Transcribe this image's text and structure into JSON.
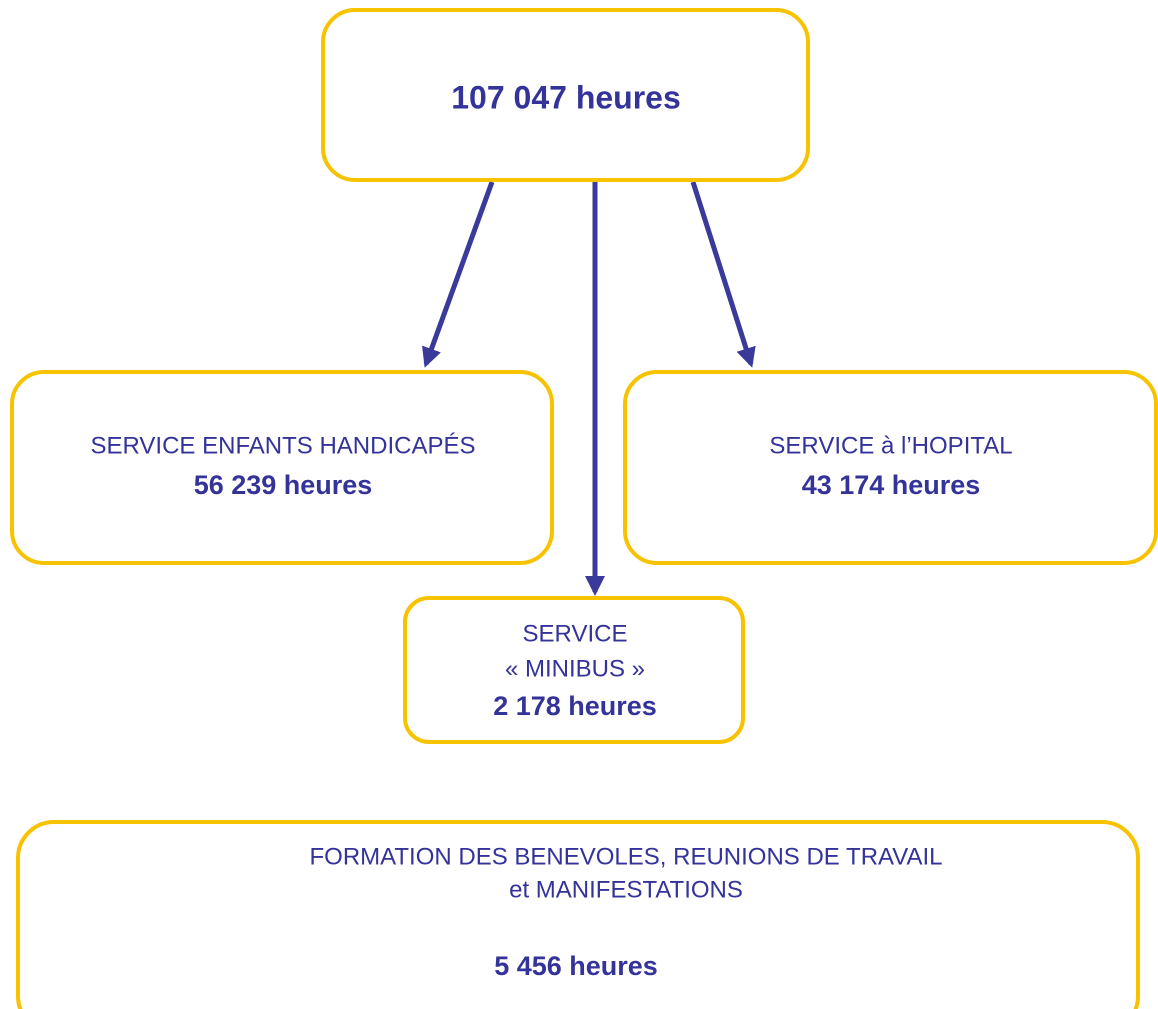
{
  "root": {
    "label": "107 047 heures"
  },
  "nodes": [
    {
      "lines": [
        "SERVICE ENFANTS HANDICAPÉS"
      ],
      "value": "56 239 heures"
    },
    {
      "lines": [
        "SERVICE à l’HOPITAL"
      ],
      "value": "43 174 heures"
    },
    {
      "lines": [
        "SERVICE",
        "« MINIBUS »"
      ],
      "value": "2 178 heures"
    },
    {
      "lines": [
        "FORMATION DES BENEVOLES, REUNIONS DE TRAVAIL",
        "et MANIFESTATIONS"
      ],
      "value": "5 456 heures"
    }
  ]
}
